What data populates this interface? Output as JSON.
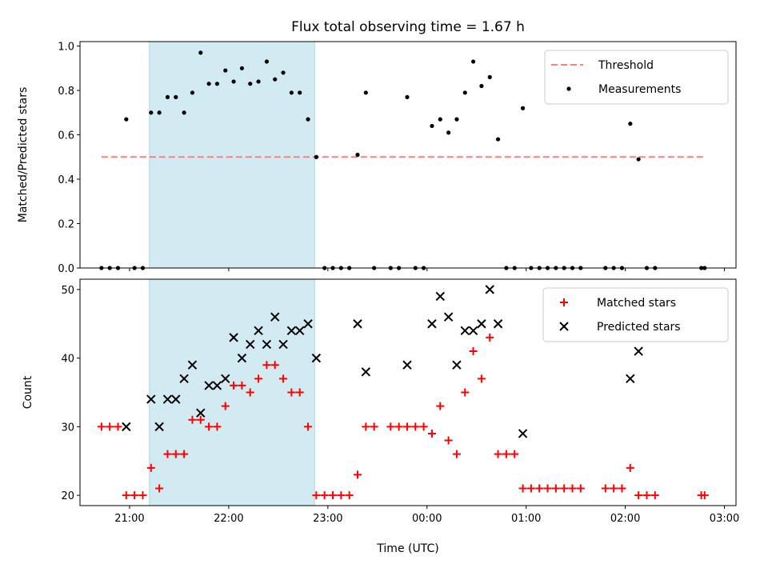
{
  "chart_data": [
    {
      "type": "scatter",
      "title": "Flux total observing time = 1.67 h",
      "xlabel": "",
      "ylabel": "Matched/Predicted stars",
      "ylim": [
        0,
        1.02
      ],
      "yticks": [
        "0.0",
        "0.2",
        "0.4",
        "0.6",
        "0.8",
        "1.0"
      ],
      "highlight_band": {
        "x0": "21:12",
        "x1": "22:52",
        "color": "#add8e6"
      },
      "threshold": {
        "name": "Threshold",
        "value": 0.5,
        "x_start": "20:43",
        "x_end": "02:48",
        "color": "#ff7f7f",
        "style": "dashed"
      },
      "legend": {
        "position": "top-right",
        "entries": [
          "Threshold",
          "Measurements"
        ]
      },
      "series": [
        {
          "name": "Measurements",
          "marker": "dot",
          "color": "#000000",
          "points": [
            [
              "20:43",
              0
            ],
            [
              "20:48",
              0
            ],
            [
              "20:53",
              0
            ],
            [
              "20:58",
              0.67
            ],
            [
              "21:03",
              0
            ],
            [
              "21:08",
              0
            ],
            [
              "21:13",
              0.7
            ],
            [
              "21:18",
              0.7
            ],
            [
              "21:23",
              0.77
            ],
            [
              "21:28",
              0.77
            ],
            [
              "21:33",
              0.7
            ],
            [
              "21:38",
              0.79
            ],
            [
              "21:43",
              0.97
            ],
            [
              "21:48",
              0.83
            ],
            [
              "21:53",
              0.83
            ],
            [
              "21:58",
              0.89
            ],
            [
              "22:03",
              0.84
            ],
            [
              "22:08",
              0.9
            ],
            [
              "22:13",
              0.83
            ],
            [
              "22:18",
              0.84
            ],
            [
              "22:23",
              0.93
            ],
            [
              "22:28",
              0.85
            ],
            [
              "22:33",
              0.88
            ],
            [
              "22:38",
              0.79
            ],
            [
              "22:43",
              0.79
            ],
            [
              "22:48",
              0.67
            ],
            [
              "22:53",
              0.5
            ],
            [
              "22:58",
              0
            ],
            [
              "23:03",
              0
            ],
            [
              "23:08",
              0
            ],
            [
              "23:13",
              0
            ],
            [
              "23:18",
              0.51
            ],
            [
              "23:23",
              0.79
            ],
            [
              "23:28",
              0
            ],
            [
              "23:38",
              0
            ],
            [
              "23:43",
              0
            ],
            [
              "23:48",
              0.77
            ],
            [
              "23:53",
              0
            ],
            [
              "23:58",
              0
            ],
            [
              "00:03",
              0.64
            ],
            [
              "00:08",
              0.67
            ],
            [
              "00:13",
              0.61
            ],
            [
              "00:18",
              0.67
            ],
            [
              "00:23",
              0.79
            ],
            [
              "00:28",
              0.93
            ],
            [
              "00:33",
              0.82
            ],
            [
              "00:38",
              0.86
            ],
            [
              "00:43",
              0.58
            ],
            [
              "00:48",
              0
            ],
            [
              "00:53",
              0
            ],
            [
              "00:58",
              0.72
            ],
            [
              "01:03",
              0
            ],
            [
              "01:08",
              0
            ],
            [
              "01:13",
              0
            ],
            [
              "01:18",
              0
            ],
            [
              "01:23",
              0
            ],
            [
              "01:28",
              0
            ],
            [
              "01:33",
              0
            ],
            [
              "01:48",
              0
            ],
            [
              "01:53",
              0
            ],
            [
              "01:58",
              0
            ],
            [
              "02:03",
              0.65
            ],
            [
              "02:08",
              0.49
            ],
            [
              "02:13",
              0
            ],
            [
              "02:18",
              0
            ],
            [
              "02:46",
              0
            ],
            [
              "02:48",
              0
            ]
          ]
        }
      ]
    },
    {
      "type": "scatter",
      "title": "",
      "xlabel": "Time (UTC)",
      "ylabel": "Count",
      "ylim": [
        18.5,
        51.5
      ],
      "yticks": [
        "20",
        "30",
        "40",
        "50"
      ],
      "xticks": [
        "21:00",
        "22:00",
        "23:00",
        "00:00",
        "01:00",
        "02:00",
        "03:00"
      ],
      "highlight_band": {
        "x0": "21:12",
        "x1": "22:52",
        "color": "#add8e6"
      },
      "legend": {
        "position": "top-right",
        "entries": [
          "Matched stars",
          "Predicted stars"
        ]
      },
      "series": [
        {
          "name": "Matched stars",
          "marker": "plus",
          "color": "#ff0000",
          "points": [
            [
              "20:43",
              30
            ],
            [
              "20:48",
              30
            ],
            [
              "20:53",
              30
            ],
            [
              "20:58",
              20
            ],
            [
              "21:03",
              20
            ],
            [
              "21:08",
              20
            ],
            [
              "21:13",
              24
            ],
            [
              "21:18",
              21
            ],
            [
              "21:23",
              26
            ],
            [
              "21:28",
              26
            ],
            [
              "21:33",
              26
            ],
            [
              "21:38",
              31
            ],
            [
              "21:43",
              31
            ],
            [
              "21:48",
              30
            ],
            [
              "21:53",
              30
            ],
            [
              "21:58",
              33
            ],
            [
              "22:03",
              36
            ],
            [
              "22:08",
              36
            ],
            [
              "22:13",
              35
            ],
            [
              "22:18",
              37
            ],
            [
              "22:23",
              39
            ],
            [
              "22:28",
              39
            ],
            [
              "22:33",
              37
            ],
            [
              "22:38",
              35
            ],
            [
              "22:43",
              35
            ],
            [
              "22:48",
              30
            ],
            [
              "22:53",
              20
            ],
            [
              "22:58",
              20
            ],
            [
              "23:03",
              20
            ],
            [
              "23:08",
              20
            ],
            [
              "23:13",
              20
            ],
            [
              "23:18",
              23
            ],
            [
              "23:23",
              30
            ],
            [
              "23:28",
              30
            ],
            [
              "23:38",
              30
            ],
            [
              "23:43",
              30
            ],
            [
              "23:48",
              30
            ],
            [
              "23:53",
              30
            ],
            [
              "23:58",
              30
            ],
            [
              "00:03",
              29
            ],
            [
              "00:08",
              33
            ],
            [
              "00:13",
              28
            ],
            [
              "00:18",
              26
            ],
            [
              "00:23",
              35
            ],
            [
              "00:28",
              41
            ],
            [
              "00:33",
              37
            ],
            [
              "00:38",
              43
            ],
            [
              "00:43",
              26
            ],
            [
              "00:48",
              26
            ],
            [
              "00:53",
              26
            ],
            [
              "00:58",
              21
            ],
            [
              "01:03",
              21
            ],
            [
              "01:08",
              21
            ],
            [
              "01:13",
              21
            ],
            [
              "01:18",
              21
            ],
            [
              "01:23",
              21
            ],
            [
              "01:28",
              21
            ],
            [
              "01:33",
              21
            ],
            [
              "01:48",
              21
            ],
            [
              "01:53",
              21
            ],
            [
              "01:58",
              21
            ],
            [
              "02:03",
              24
            ],
            [
              "02:08",
              20
            ],
            [
              "02:13",
              20
            ],
            [
              "02:18",
              20
            ],
            [
              "02:46",
              20
            ],
            [
              "02:48",
              20
            ]
          ]
        },
        {
          "name": "Predicted stars",
          "marker": "x",
          "color": "#000000",
          "points": [
            [
              "20:58",
              30
            ],
            [
              "21:13",
              34
            ],
            [
              "21:18",
              30
            ],
            [
              "21:23",
              34
            ],
            [
              "21:28",
              34
            ],
            [
              "21:33",
              37
            ],
            [
              "21:38",
              39
            ],
            [
              "21:43",
              32
            ],
            [
              "21:48",
              36
            ],
            [
              "21:53",
              36
            ],
            [
              "21:58",
              37
            ],
            [
              "22:03",
              43
            ],
            [
              "22:08",
              40
            ],
            [
              "22:13",
              42
            ],
            [
              "22:18",
              44
            ],
            [
              "22:23",
              42
            ],
            [
              "22:28",
              46
            ],
            [
              "22:33",
              42
            ],
            [
              "22:38",
              44
            ],
            [
              "22:43",
              44
            ],
            [
              "22:48",
              45
            ],
            [
              "22:53",
              40
            ],
            [
              "23:18",
              45
            ],
            [
              "23:23",
              38
            ],
            [
              "23:48",
              39
            ],
            [
              "00:03",
              45
            ],
            [
              "00:08",
              49
            ],
            [
              "00:13",
              46
            ],
            [
              "00:18",
              39
            ],
            [
              "00:23",
              44
            ],
            [
              "00:28",
              44
            ],
            [
              "00:33",
              45
            ],
            [
              "00:38",
              50
            ],
            [
              "00:43",
              45
            ],
            [
              "00:58",
              29
            ],
            [
              "02:03",
              37
            ],
            [
              "02:08",
              41
            ]
          ]
        }
      ]
    }
  ]
}
